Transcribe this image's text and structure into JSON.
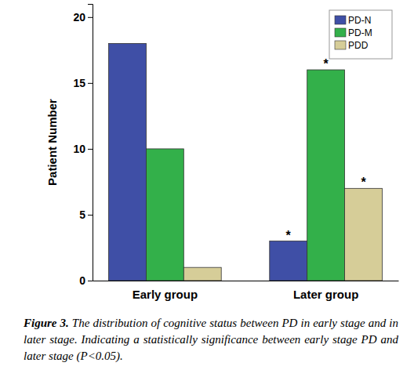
{
  "chart_data": {
    "type": "bar",
    "y_label": "Patient Number",
    "categories": [
      "Early group",
      "Later group"
    ],
    "series": [
      {
        "name": "PD-N",
        "color": "#3f4fa6",
        "values": [
          18,
          3
        ]
      },
      {
        "name": "PD-M",
        "color": "#33b04a",
        "values": [
          10,
          16
        ]
      },
      {
        "name": "PDD",
        "color": "#d6cd98",
        "values": [
          1,
          7
        ]
      }
    ],
    "ylim": [
      0,
      21
    ],
    "yticks": [
      0,
      5,
      10,
      15,
      20
    ],
    "grid": false,
    "legend": "top-right",
    "annotations": [
      {
        "text": "*",
        "x": "Later group",
        "series": "PD-N"
      },
      {
        "text": "*",
        "x": "Later group",
        "series": "PD-M"
      },
      {
        "text": "*",
        "x": "Later group",
        "series": "PDD"
      }
    ],
    "caption_label": "Figure 3.",
    "caption": "The distribution of cognitive status between PD in early stage and in later stage. Indicating a statistically significance between early stage PD and later stage (P<0.05)."
  }
}
